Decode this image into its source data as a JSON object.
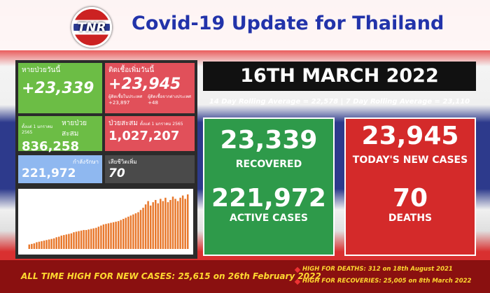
{
  "header": {
    "logo": "TNR",
    "title": "Covid-19 Update for Thailand"
  },
  "tiles": {
    "recovered_today": {
      "label": "หายป่วยวันนี้",
      "value": "+23,339"
    },
    "new_cases_today": {
      "label": "ติดเชื้อเพิ่มวันนี้",
      "value": "+23,945",
      "domestic_label": "ผู้ติดเชื้อในประเทศ",
      "domestic": "+23,897",
      "imported_label": "ผู้ติดเชื้อจากต่างประเทศ",
      "imported": "+48"
    },
    "recovered_total": {
      "label": "หายป่วยสะสม",
      "note": "ตั้งแต่ 1 มกราคม 2565",
      "value": "836,258"
    },
    "cases_total": {
      "label": "ป่วยสะสม",
      "note": "ตั้งแต่ 1 มกราคม 2565",
      "value": "1,027,207"
    },
    "in_treatment": {
      "label": "กำลังรักษา",
      "value": "221,972"
    },
    "deaths_today": {
      "label": "เสียชีวิตเพิ่ม",
      "value": "70"
    }
  },
  "mini_chart": {
    "values": [
      8,
      9,
      10,
      12,
      13,
      14,
      15,
      16,
      17,
      18,
      19,
      21,
      22,
      24,
      25,
      26,
      27,
      28,
      30,
      31,
      32,
      33,
      34,
      34,
      35,
      36,
      37,
      38,
      40,
      42,
      44,
      45,
      46,
      47,
      48,
      49,
      50,
      52,
      54,
      56,
      58,
      60,
      62,
      64,
      66,
      70,
      74,
      80,
      86,
      78,
      84,
      88,
      82,
      90,
      86,
      92,
      84,
      88,
      94,
      90,
      86,
      92,
      96,
      90,
      98
    ],
    "color": "#e8782c"
  },
  "date": "16TH MARCH 2022",
  "rolling": "14 Day Rolling Average = 22,578 |  7 Day Rolling Average = 23,110",
  "green_box": {
    "recovered": "23,339",
    "recovered_label": "RECOVERED",
    "active": "221,972",
    "active_label": "ACTIVE CASES"
  },
  "red_box": {
    "new_cases": "23,945",
    "new_cases_label": "TODAY'S NEW CASES",
    "deaths": "70",
    "deaths_label": "DEATHS"
  },
  "footer": {
    "new_cases_high": "ALL TIME HIGH FOR NEW CASES: 25,615 on 26th February 2022",
    "deaths_high": "HIGH FOR DEATHS: 312 on 18th August 2021",
    "recoveries_high": "HIGH FOR RECOVERIES: 25,005 on 8th March 2022"
  }
}
